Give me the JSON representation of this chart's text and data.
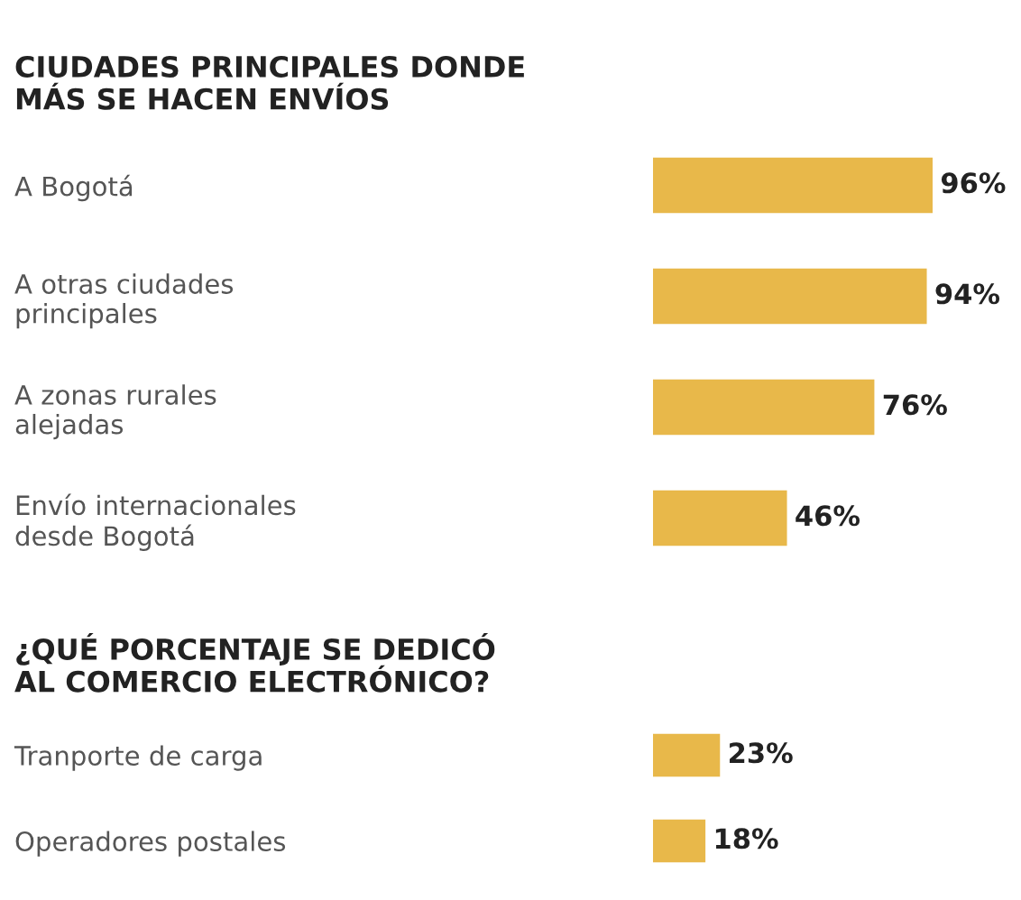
{
  "chart_data": [
    {
      "type": "bar",
      "orientation": "horizontal",
      "title": "CIUDADES PRINCIPALES DONDE\nMÁS SE HACEN ENVÍOS",
      "categories": [
        "A Bogotá",
        "A otras ciudades\nprincipales",
        "A zonas rurales\nalejadas",
        "Envío internacionales\ndesde Bogotá"
      ],
      "values": [
        96,
        94,
        76,
        46
      ],
      "value_labels": [
        "96%",
        "94%",
        "76%",
        "46%"
      ],
      "color": "#e8b84a"
    },
    {
      "type": "bar",
      "orientation": "horizontal",
      "title": "¿QUÉ PORCENTAJE SE DEDICÓ\nAL COMERCIO ELECTRÓNICO?",
      "categories": [
        "Tranporte de carga",
        "Operadores postales"
      ],
      "values": [
        23,
        18
      ],
      "value_labels": [
        "23%",
        "18%"
      ],
      "color": "#e8b84a"
    }
  ]
}
